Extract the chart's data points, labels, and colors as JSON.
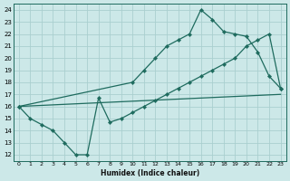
{
  "xlabel": "Humidex (Indice chaleur)",
  "bg_color": "#cce8e8",
  "line_color": "#1e6b5e",
  "grid_color": "#aacfcf",
  "xlim": [
    -0.5,
    23.5
  ],
  "ylim": [
    11.5,
    24.5
  ],
  "xticks": [
    0,
    1,
    2,
    3,
    4,
    5,
    6,
    7,
    8,
    9,
    10,
    11,
    12,
    13,
    14,
    15,
    16,
    17,
    18,
    19,
    20,
    21,
    22,
    23
  ],
  "yticks": [
    12,
    13,
    14,
    15,
    16,
    17,
    18,
    19,
    20,
    21,
    22,
    23,
    24
  ],
  "line1_x": [
    0,
    1,
    2,
    3,
    4,
    5,
    6,
    7,
    8,
    9,
    10,
    11,
    12,
    13,
    14,
    15,
    16,
    17,
    18,
    19,
    20,
    21,
    22,
    23
  ],
  "line1_y": [
    16,
    15,
    14.5,
    14,
    13,
    12,
    12,
    16.7,
    14.7,
    15,
    15.5,
    16,
    16.5,
    17,
    17.5,
    18,
    18.5,
    19,
    19.5,
    20,
    21,
    21.5,
    22,
    17.5
  ],
  "line2_x": [
    0,
    23
  ],
  "line2_y": [
    16,
    17
  ],
  "line3_x": [
    0,
    10,
    11,
    12,
    13,
    14,
    15,
    16,
    17,
    18,
    19,
    20,
    21,
    22,
    23
  ],
  "line3_y": [
    16,
    18,
    19,
    20,
    21,
    21.5,
    22,
    24,
    23.2,
    22.2,
    22,
    21.8,
    20.5,
    18.5,
    17.5
  ]
}
